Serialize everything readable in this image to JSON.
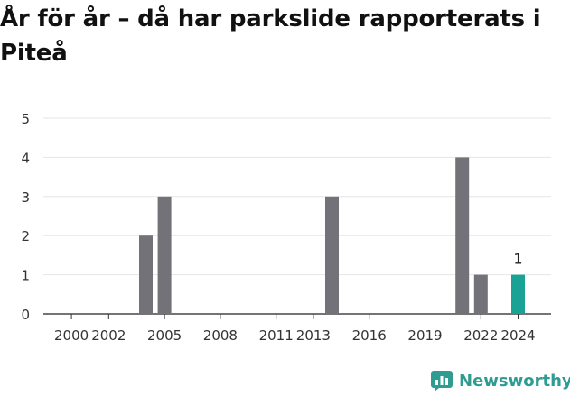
{
  "title": "År för år – då har parkslide rapporterats i Piteå",
  "brand": {
    "name": "Newsworthy",
    "icon": "newsworthy-logo-icon"
  },
  "colors": {
    "bar": "#737278",
    "highlight": "#1aa295",
    "grid": "#e6e6e6",
    "brand": "#2f9c92"
  },
  "chart_data": {
    "type": "bar",
    "title": "År för år – då har parkslide rapporterats i Piteå",
    "xlabel": "",
    "ylabel": "",
    "ylim": [
      0,
      5
    ],
    "yticks": [
      0,
      1,
      2,
      3,
      4,
      5
    ],
    "xlim": [
      1999,
      2025
    ],
    "xticks": [
      "2000",
      "2002",
      "2005",
      "2008",
      "2011",
      "2013",
      "2016",
      "2019",
      "2022",
      "2024"
    ],
    "grid": true,
    "categories": [
      "2000",
      "2001",
      "2002",
      "2003",
      "2004",
      "2005",
      "2006",
      "2007",
      "2008",
      "2009",
      "2010",
      "2011",
      "2012",
      "2013",
      "2014",
      "2015",
      "2016",
      "2017",
      "2018",
      "2019",
      "2020",
      "2021",
      "2022",
      "2023",
      "2024"
    ],
    "values": [
      0,
      0,
      0,
      0,
      2,
      3,
      0,
      0,
      0,
      0,
      0,
      0,
      0,
      0,
      3,
      0,
      0,
      0,
      0,
      0,
      0,
      4,
      1,
      0,
      1
    ],
    "highlight": {
      "category": "2024",
      "label": "1"
    }
  }
}
